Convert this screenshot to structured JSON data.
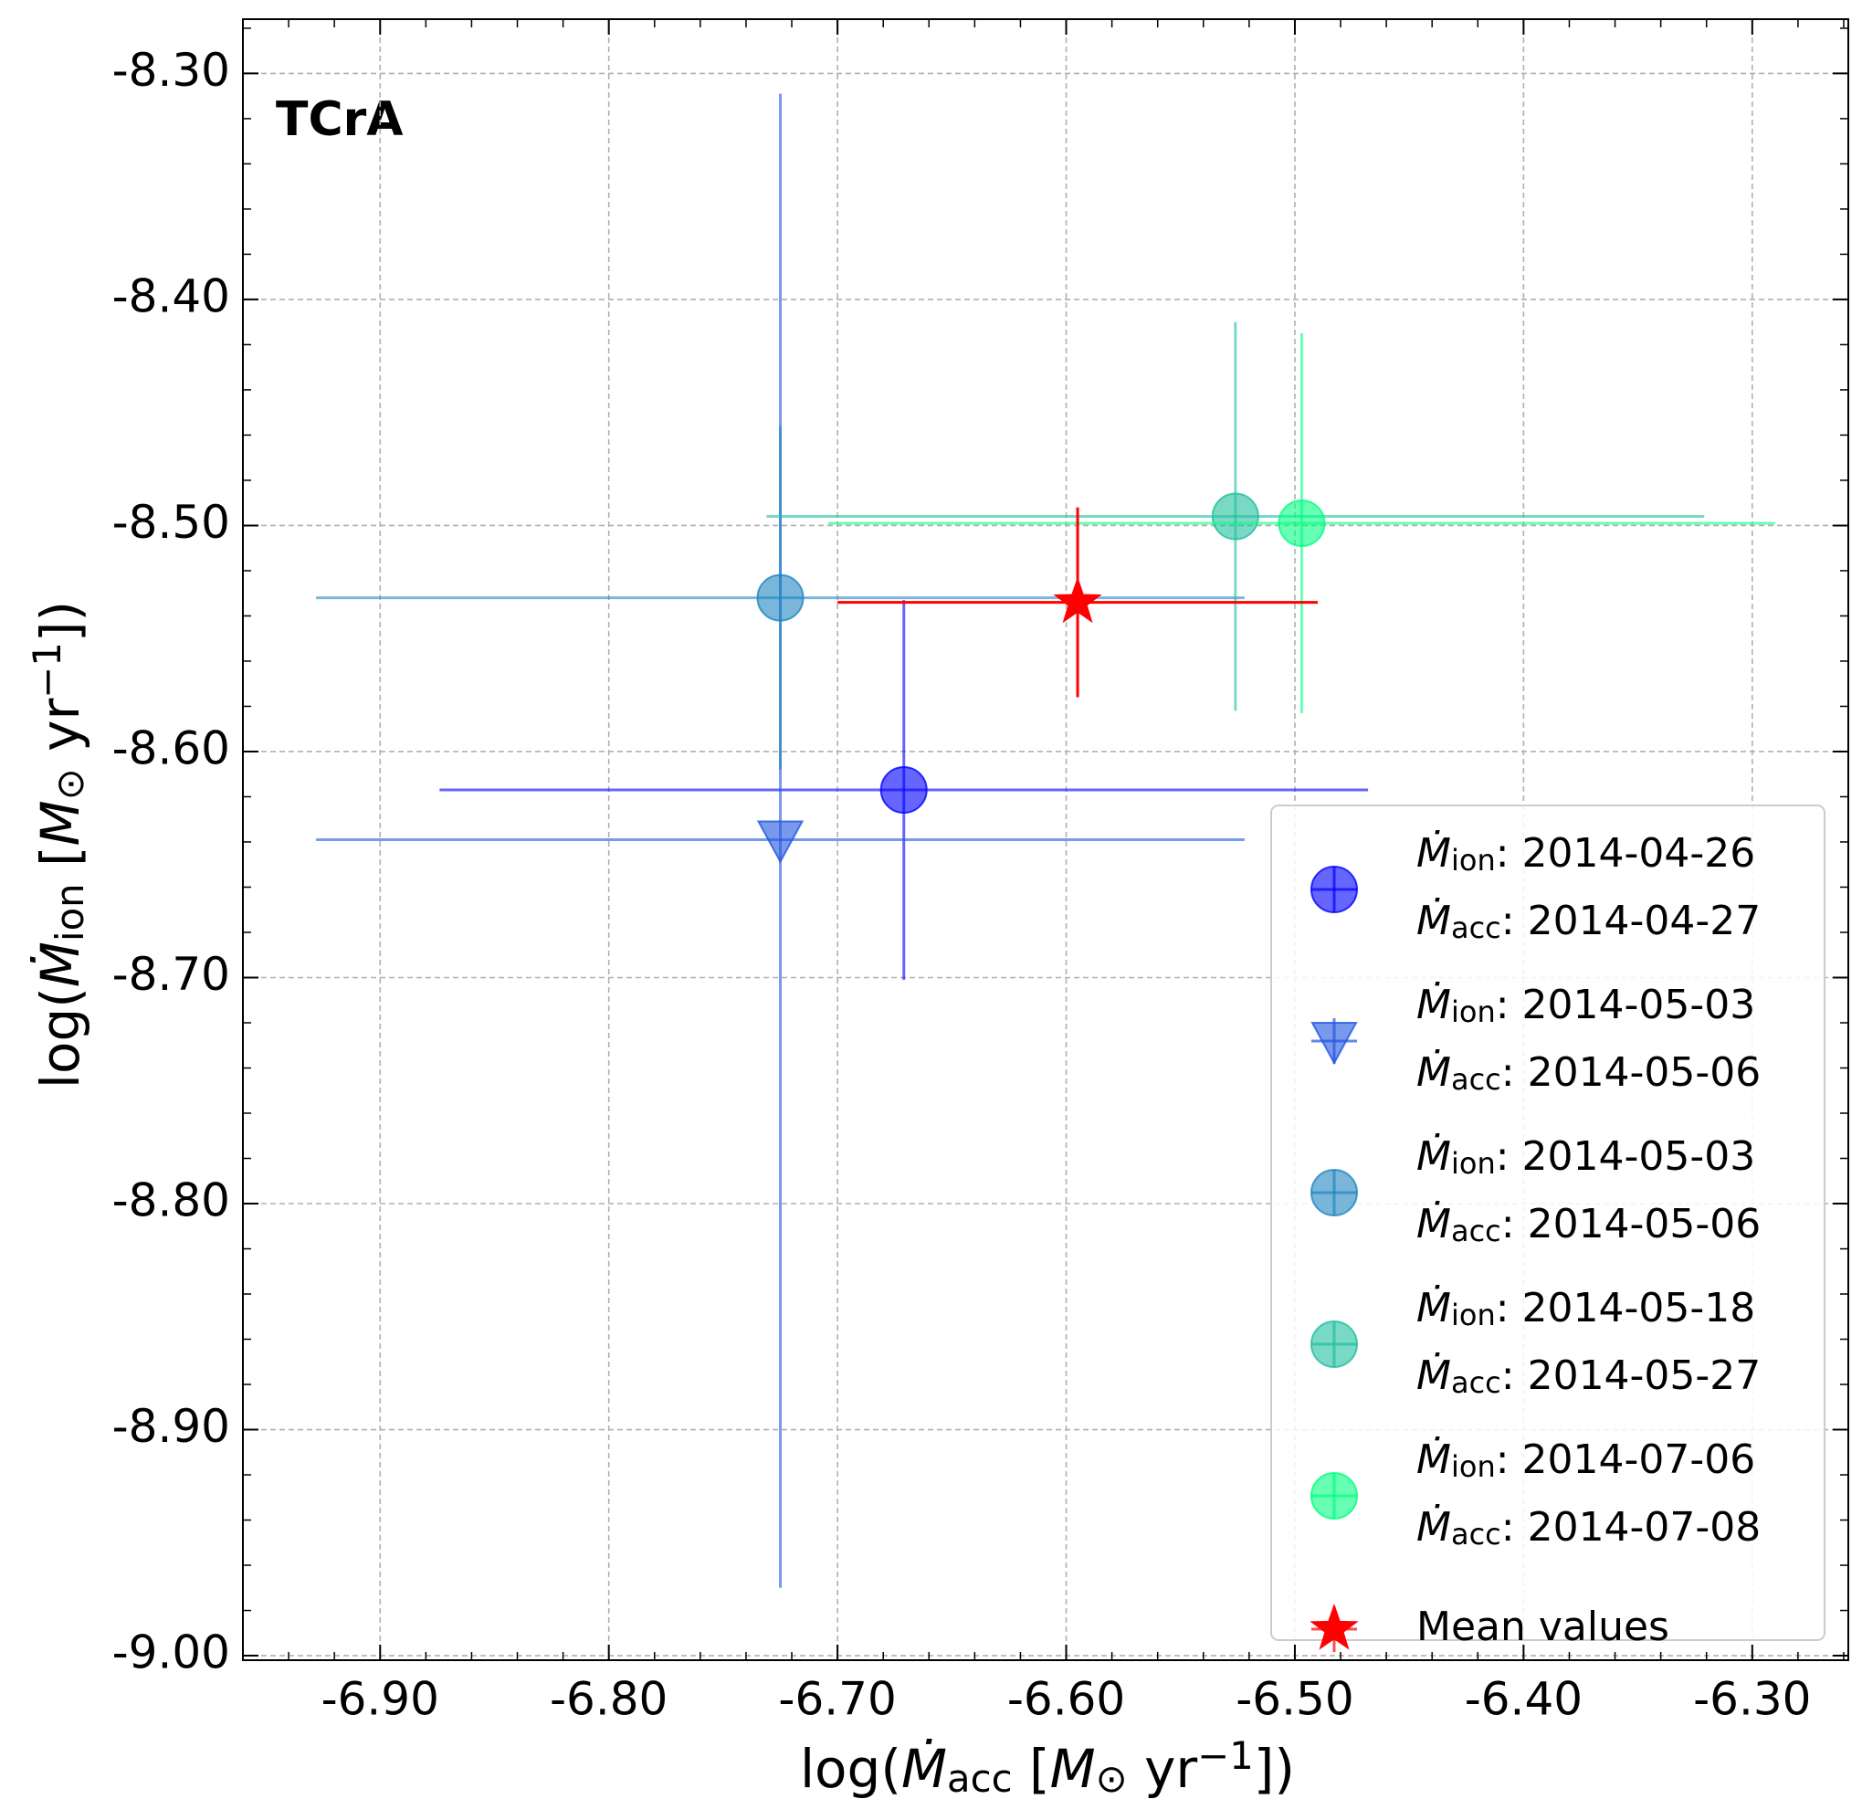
{
  "chart_data": {
    "type": "scatter",
    "title": "TCrA",
    "xlabel": [
      {
        "t": "log("
      },
      {
        "t": "Ṁ",
        "style": "italic"
      },
      {
        "t": "acc",
        "pos": "sub"
      },
      {
        "t": " ["
      },
      {
        "t": "M",
        "style": "italic"
      },
      {
        "t": "⊙",
        "pos": "sub"
      },
      {
        "t": " yr"
      },
      {
        "t": "−1",
        "pos": "sup"
      },
      {
        "t": "])"
      }
    ],
    "ylabel": [
      {
        "t": "log("
      },
      {
        "t": "Ṁ",
        "style": "italic"
      },
      {
        "t": "ion",
        "pos": "sub"
      },
      {
        "t": " ["
      },
      {
        "t": "M",
        "style": "italic"
      },
      {
        "t": "⊙",
        "pos": "sub"
      },
      {
        "t": " yr"
      },
      {
        "t": "−1",
        "pos": "sup"
      },
      {
        "t": "])"
      }
    ],
    "xlim": [
      -6.96,
      -6.258
    ],
    "ylim": [
      -9.002,
      -8.276
    ],
    "xticks": [
      {
        "value": -6.9,
        "label": "-6.90"
      },
      {
        "value": -6.8,
        "label": "-6.80"
      },
      {
        "value": -6.7,
        "label": "-6.70"
      },
      {
        "value": -6.6,
        "label": "-6.60"
      },
      {
        "value": -6.5,
        "label": "-6.50"
      },
      {
        "value": -6.4,
        "label": "-6.40"
      },
      {
        "value": -6.3,
        "label": "-6.30"
      }
    ],
    "yticks": [
      {
        "value": -9.0,
        "label": "-9.00"
      },
      {
        "value": -8.9,
        "label": "-8.90"
      },
      {
        "value": -8.8,
        "label": "-8.80"
      },
      {
        "value": -8.7,
        "label": "-8.70"
      },
      {
        "value": -8.6,
        "label": "-8.60"
      },
      {
        "value": -8.5,
        "label": "-8.50"
      },
      {
        "value": -8.4,
        "label": "-8.40"
      },
      {
        "value": -8.3,
        "label": "-8.30"
      }
    ],
    "grid": true,
    "legend_position": "lower right",
    "legend_symbol": "Ṁ",
    "legend_separator": ": ",
    "series": [
      {
        "marker": "o",
        "color": "#0000ff",
        "x": -6.671,
        "y": -8.617,
        "xerr": [
          0.203,
          0.203
        ],
        "yerr": [
          0.084,
          0.084
        ],
        "legend_lines": [
          {
            "sub": "ion",
            "date": "2014-04-26"
          },
          {
            "sub": "acc",
            "date": "2014-04-27"
          }
        ]
      },
      {
        "marker": "v",
        "color": "#1f55e0",
        "x": -6.725,
        "y": -8.639,
        "xerr": [
          0.203,
          0.203
        ],
        "yerr": [
          0.331,
          0.33
        ],
        "legend_lines": [
          {
            "sub": "ion",
            "date": "2014-05-03"
          },
          {
            "sub": "acc",
            "date": "2014-05-06"
          }
        ]
      },
      {
        "marker": "o",
        "color": "#1f86c0",
        "x": -6.725,
        "y": -8.532,
        "xerr": [
          0.203,
          0.203
        ],
        "yerr": [
          0.076,
          0.076
        ],
        "legend_lines": [
          {
            "sub": "ion",
            "date": "2014-05-03"
          },
          {
            "sub": "acc",
            "date": "2014-05-06"
          }
        ]
      },
      {
        "marker": "o",
        "color": "#1fbf9f",
        "x": -6.526,
        "y": -8.496,
        "xerr": [
          0.205,
          0.205
        ],
        "yerr": [
          0.086,
          0.086
        ],
        "legend_lines": [
          {
            "sub": "ion",
            "date": "2014-05-18"
          },
          {
            "sub": "acc",
            "date": "2014-05-27"
          }
        ]
      },
      {
        "marker": "o",
        "color": "#00ff80",
        "x": -6.497,
        "y": -8.499,
        "xerr": [
          0.207,
          0.207
        ],
        "yerr": [
          0.084,
          0.084
        ],
        "legend_lines": [
          {
            "sub": "ion",
            "date": "2014-07-06"
          },
          {
            "sub": "acc",
            "date": "2014-07-08"
          }
        ]
      },
      {
        "marker": "*",
        "color": "#ff0000",
        "name": "Mean values",
        "x": -6.595,
        "y": -8.534,
        "xerr": [
          0.105,
          0.105
        ],
        "yerr": [
          0.042,
          0.042
        ]
      }
    ]
  }
}
